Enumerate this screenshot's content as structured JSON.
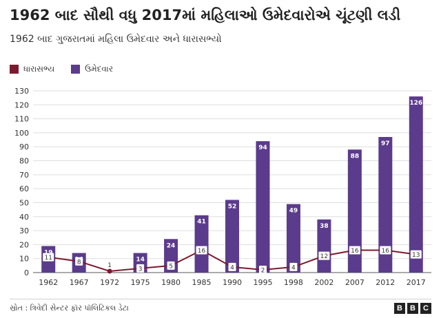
{
  "header": {
    "title": "1962 બાદ સૌથી વધુ 2017માં મહિલાઓ ઉમેદવારોએ ચૂંટણી લડી",
    "subtitle": "1962 બાદ ગુજરાતમાં મહિલા ઉમેદવાર અને ધારાસભ્યો"
  },
  "legend": {
    "mla_label": "ધારાસભ્ય",
    "candidate_label": "ઉમેદવાર"
  },
  "colors": {
    "mla": "#7b1a2e",
    "candidate": "#5b3b8c"
  },
  "footer": {
    "source": "સ્રોત : ત્રિવેદી સેન્ટર ફૉર પૉલિટિકલ ડેટા",
    "logo_letters": [
      "B",
      "B",
      "C"
    ]
  },
  "chart_data": {
    "type": "bar",
    "categories": [
      "1962",
      "1967",
      "1972",
      "1975",
      "1980",
      "1985",
      "1990",
      "1995",
      "1998",
      "2002",
      "2007",
      "2012",
      "2017"
    ],
    "series": [
      {
        "name": "ઉમેદવાર",
        "type": "bar",
        "values": [
          19,
          14,
          0,
          14,
          24,
          41,
          52,
          94,
          49,
          38,
          88,
          97,
          126
        ]
      },
      {
        "name": "ધારાસભ્ય",
        "type": "line",
        "values": [
          11,
          8,
          1,
          3,
          5,
          16,
          4,
          2,
          4,
          12,
          16,
          16,
          13
        ]
      }
    ],
    "ylim": [
      0,
      130
    ],
    "yticks": [
      0,
      10,
      20,
      30,
      40,
      50,
      60,
      70,
      80,
      90,
      100,
      110,
      120,
      130
    ],
    "grid": true,
    "legend_position": "top-left"
  }
}
